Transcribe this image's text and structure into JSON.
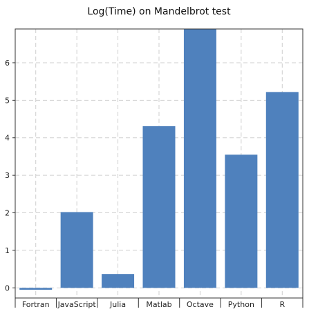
{
  "colors": {
    "bar": "#4f81bd",
    "grid": "#cfcfcf",
    "axis": "#333333"
  },
  "chart_data": {
    "type": "bar",
    "title": "Log(Time) on Mandelbrot test",
    "xlabel": "",
    "ylabel": "",
    "categories": [
      "Fortran",
      "JavaScript",
      "Julia",
      "Matlab",
      "Octave",
      "Python",
      "R"
    ],
    "values": [
      -0.05,
      2.02,
      0.37,
      4.31,
      6.9,
      3.55,
      5.22
    ],
    "ylim": [
      -0.27,
      6.9
    ],
    "yticks": [
      "0",
      "1",
      "2",
      "3",
      "4",
      "5",
      "6"
    ],
    "grid": true,
    "legend": "none"
  }
}
